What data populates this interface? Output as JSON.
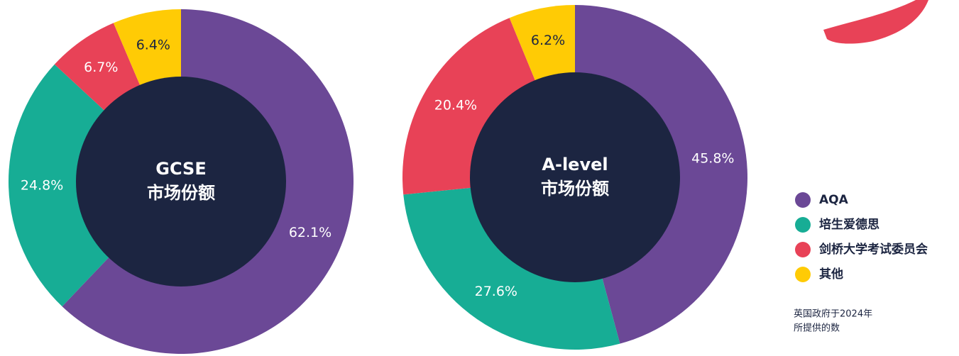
{
  "chart_data": [
    {
      "type": "pie",
      "title": "GCSE",
      "subtitle": "市场份额",
      "categories": [
        "AQA",
        "培生爱德思",
        "剑桥大学考试委员会",
        "其他"
      ],
      "values": [
        62.1,
        24.8,
        6.7,
        6.4
      ],
      "value_labels": [
        "62.1%",
        "24.8%",
        "6.7%",
        "6.4%"
      ],
      "colors": [
        "#6b4896",
        "#17ad95",
        "#e84257",
        "#ffcb05"
      ]
    },
    {
      "type": "pie",
      "title": "A-level",
      "subtitle": "市场份额",
      "categories": [
        "AQA",
        "培生爱德思",
        "剑桥大学考试委员会",
        "其他"
      ],
      "values": [
        45.8,
        27.6,
        20.4,
        6.2
      ],
      "value_labels": [
        "45.8%",
        "27.6%",
        "20.4%",
        "6.2%"
      ],
      "colors": [
        "#6b4896",
        "#17ad95",
        "#e84257",
        "#ffcb05"
      ]
    }
  ],
  "source": [
    "英国政府于2024年",
    "所提供的数"
  ]
}
